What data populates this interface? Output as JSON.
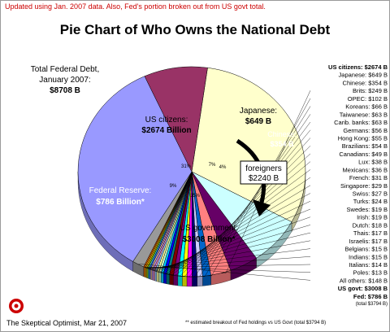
{
  "chart_data": {
    "type": "pie",
    "update_note": "Updated using Jan. 2007 data.  Also, Fed's portion broken out from US govt total.",
    "title": "Pie Chart of Who Owns the National Debt",
    "total_label_lines": [
      "Total Federal Debt,",
      "January 2007:"
    ],
    "total_value": "$8708 B",
    "slices": [
      {
        "name": "US citizens",
        "value": 2674,
        "pie_label": "US citizens:",
        "pie_value": "$2674 Billion",
        "percent": "31%",
        "color": "#ffffcc"
      },
      {
        "name": "Japanese",
        "value": 649,
        "pie_label": "Japanese:",
        "pie_value": "$649 B",
        "percent": "7%",
        "color": "#ccffff"
      },
      {
        "name": "Chinese",
        "value": 354,
        "pie_label": "Chinese:",
        "pie_value": "$354 B",
        "percent": "4%",
        "color": "#660066"
      },
      {
        "name": "Brits",
        "value": 249,
        "color": "#ff8080"
      },
      {
        "name": "OPEC",
        "value": 102,
        "color": "#0066cc"
      },
      {
        "name": "Koreans",
        "value": 66,
        "color": "#ccccff"
      },
      {
        "name": "Taiwanese",
        "value": 63,
        "color": "#000080"
      },
      {
        "name": "Carib. banks",
        "value": 63,
        "color": "#ff00ff"
      },
      {
        "name": "Germans",
        "value": 56,
        "color": "#ffff00"
      },
      {
        "name": "Hong Kong",
        "value": 55,
        "color": "#00ffff"
      },
      {
        "name": "Brazilians",
        "value": 54,
        "color": "#800080"
      },
      {
        "name": "Canadians",
        "value": 49,
        "color": "#800000"
      },
      {
        "name": "Lux",
        "value": 38,
        "color": "#008080"
      },
      {
        "name": "Mexicans",
        "value": 36,
        "color": "#0000ff"
      },
      {
        "name": "French",
        "value": 31,
        "color": "#00ccff"
      },
      {
        "name": "Singapore",
        "value": 29,
        "color": "#ccffcc"
      },
      {
        "name": "Swiss",
        "value": 27,
        "color": "#ffff99"
      },
      {
        "name": "Turks",
        "value": 24,
        "color": "#99ccff"
      },
      {
        "name": "Swedes",
        "value": 19,
        "color": "#ff99cc"
      },
      {
        "name": "Irish",
        "value": 19,
        "color": "#cc99ff"
      },
      {
        "name": "Dutch",
        "value": 18,
        "color": "#ffcc99"
      },
      {
        "name": "Thais",
        "value": 17,
        "color": "#3366ff"
      },
      {
        "name": "Israelis",
        "value": 17,
        "color": "#33cccc"
      },
      {
        "name": "Belgians",
        "value": 15,
        "color": "#99cc00"
      },
      {
        "name": "Indians",
        "value": 15,
        "color": "#ffcc00"
      },
      {
        "name": "Italians",
        "value": 14,
        "color": "#ff9900"
      },
      {
        "name": "Poles",
        "value": 13,
        "color": "#ff6600"
      },
      {
        "name": "All others",
        "value": 148,
        "color": "#999999"
      },
      {
        "name": "US govt",
        "value": 3008,
        "pie_label": "US government:",
        "pie_value": "$3008 Billion*",
        "percent": "35%",
        "color": "#9999ff"
      },
      {
        "name": "Fed",
        "value": 786,
        "pie_label": "Federal Reserve:",
        "pie_value": "$786 Billion*",
        "percent": "9%",
        "color": "#993366"
      }
    ],
    "legend": [
      {
        "label": "US citizens:",
        "value": "$2674 B",
        "bold": true
      },
      {
        "label": "Japanese:",
        "value": "$649 B"
      },
      {
        "label": "Chinese:",
        "value": "$354 B"
      },
      {
        "label": "Brits:",
        "value": "$249 B"
      },
      {
        "label": "OPEC:",
        "value": "$102 B"
      },
      {
        "label": "Koreans:",
        "value": "$66 B"
      },
      {
        "label": "Taiwanese:",
        "value": "$63 B"
      },
      {
        "label": "Carib. banks:",
        "value": "$63 B"
      },
      {
        "label": "Germans:",
        "value": "$56 B"
      },
      {
        "label": "Hong Kong:",
        "value": "$55 B"
      },
      {
        "label": "Brazilians:",
        "value": "$54 B"
      },
      {
        "label": "Canadians:",
        "value": "$49 B"
      },
      {
        "label": "Lux:",
        "value": "$38 B"
      },
      {
        "label": "Mexicans:",
        "value": "$36 B"
      },
      {
        "label": "French:",
        "value": "$31 B"
      },
      {
        "label": "Singapore:",
        "value": "$29 B"
      },
      {
        "label": "Swiss:",
        "value": "$27 B"
      },
      {
        "label": "Turks:",
        "value": "$24 B"
      },
      {
        "label": "Swedes:",
        "value": "$19 B"
      },
      {
        "label": "Irish:",
        "value": "$19 B"
      },
      {
        "label": "Dutch:",
        "value": "$18 B"
      },
      {
        "label": "Thais:",
        "value": "$17 B"
      },
      {
        "label": "Israelis:",
        "value": "$17 B"
      },
      {
        "label": "Belgians:",
        "value": "$15 B"
      },
      {
        "label": "Indians:",
        "value": "$15 B"
      },
      {
        "label": "Italians:",
        "value": "$14 B"
      },
      {
        "label": "Poles:",
        "value": "$13 B"
      },
      {
        "label": "All others:",
        "value": "$148 B"
      },
      {
        "label": "US govt:",
        "value": "$3008 B",
        "bold": true
      },
      {
        "label": "Fed:",
        "value": "$786 B",
        "bold": true
      }
    ],
    "legend_note": "(total $3794 B)",
    "foreigners_lines": [
      "foreigners",
      "$2240 B"
    ],
    "credit": "The Skeptical Optimist, Mar 21, 2007",
    "footnote": "** estimated breakout of Fed holdings vs US Govt (total $3794 B)",
    "logo_text": "O",
    "colors": {
      "note": "#cc0000",
      "outline": "#000000",
      "arrow": "#000000",
      "logo": "#cc0000"
    }
  }
}
